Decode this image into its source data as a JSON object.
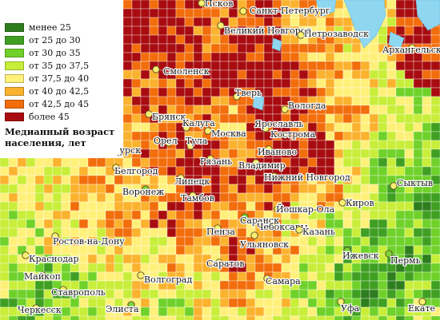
{
  "legend": {
    "title": "Медианный возраст населения, лет",
    "items": [
      {
        "label": "менее 25",
        "color": "#2e7d1e"
      },
      {
        "label": "от 25 до 30",
        "color": "#3f9f22"
      },
      {
        "label": "от 30 до 35",
        "color": "#6fd12a"
      },
      {
        "label": "от 35 до 37,5",
        "color": "#c8ee3a"
      },
      {
        "label": "от 37,5 до 40",
        "color": "#fff07a"
      },
      {
        "label": "от 40 до 42,5",
        "color": "#fbb22e"
      },
      {
        "label": "от 42,5 до 45",
        "color": "#f26d0c"
      },
      {
        "label": "более 45",
        "color": "#a80c10"
      }
    ]
  },
  "water_color": "#8fd6f0",
  "city_marker_colors": {
    "yellow": "#f7ef70",
    "green": "#7fd33a"
  },
  "cities": [
    {
      "name": "Псков",
      "marker": "yellow"
    },
    {
      "name": "Санкт-Петербург",
      "marker": "yellow"
    },
    {
      "name": "Великий Новгород",
      "marker": "yellow"
    },
    {
      "name": "Петрозаводск",
      "marker": "yellow"
    },
    {
      "name": "Архангельск",
      "marker": "yellow"
    },
    {
      "name": "Смоленск",
      "marker": "yellow"
    },
    {
      "name": "Тверь",
      "marker": "yellow"
    },
    {
      "name": "Вологда",
      "marker": "yellow"
    },
    {
      "name": "Брянск",
      "marker": "yellow"
    },
    {
      "name": "Калуга",
      "marker": "yellow"
    },
    {
      "name": "Москва",
      "marker": "yellow"
    },
    {
      "name": "Ярославль",
      "marker": "yellow"
    },
    {
      "name": "Кострома",
      "marker": "yellow"
    },
    {
      "name": "Орел",
      "marker": "yellow"
    },
    {
      "name": "Тула",
      "marker": "yellow"
    },
    {
      "name": "Иваново",
      "marker": "yellow"
    },
    {
      "name": "Курск",
      "marker": "yellow"
    },
    {
      "name": "Рязань",
      "marker": "yellow"
    },
    {
      "name": "Владимир",
      "marker": "yellow"
    },
    {
      "name": "Белгород",
      "marker": "yellow"
    },
    {
      "name": "Липецк",
      "marker": "yellow"
    },
    {
      "name": "Нижний Новгород",
      "marker": "yellow"
    },
    {
      "name": "Сыктыв",
      "marker": "yellow"
    },
    {
      "name": "Воронеж",
      "marker": "green"
    },
    {
      "name": "Тамбов",
      "marker": "yellow"
    },
    {
      "name": "Киров",
      "marker": "yellow"
    },
    {
      "name": "Йошкар-Ола",
      "marker": "yellow"
    },
    {
      "name": "Саранск",
      "marker": "green"
    },
    {
      "name": "Чебоксары",
      "marker": "yellow"
    },
    {
      "name": "Казань",
      "marker": "yellow"
    },
    {
      "name": "Пенза",
      "marker": "yellow"
    },
    {
      "name": "Ульяновск",
      "marker": "yellow"
    },
    {
      "name": "Ростов-на-Дону",
      "marker": "yellow"
    },
    {
      "name": "Ижевск",
      "marker": "green"
    },
    {
      "name": "Пермь",
      "marker": "green"
    },
    {
      "name": "Краснодар",
      "marker": "yellow"
    },
    {
      "name": "Майкоп",
      "marker": "yellow"
    },
    {
      "name": "Волгоград",
      "marker": "yellow"
    },
    {
      "name": "Саратов",
      "marker": "yellow"
    },
    {
      "name": "Самара",
      "marker": "yellow"
    },
    {
      "name": "Ставрополь",
      "marker": "yellow"
    },
    {
      "name": "Черкесск",
      "marker": "yellow"
    },
    {
      "name": "Элиста",
      "marker": "green"
    },
    {
      "name": "Уфа",
      "marker": "yellow"
    },
    {
      "name": "Екате",
      "marker": "yellow"
    }
  ]
}
